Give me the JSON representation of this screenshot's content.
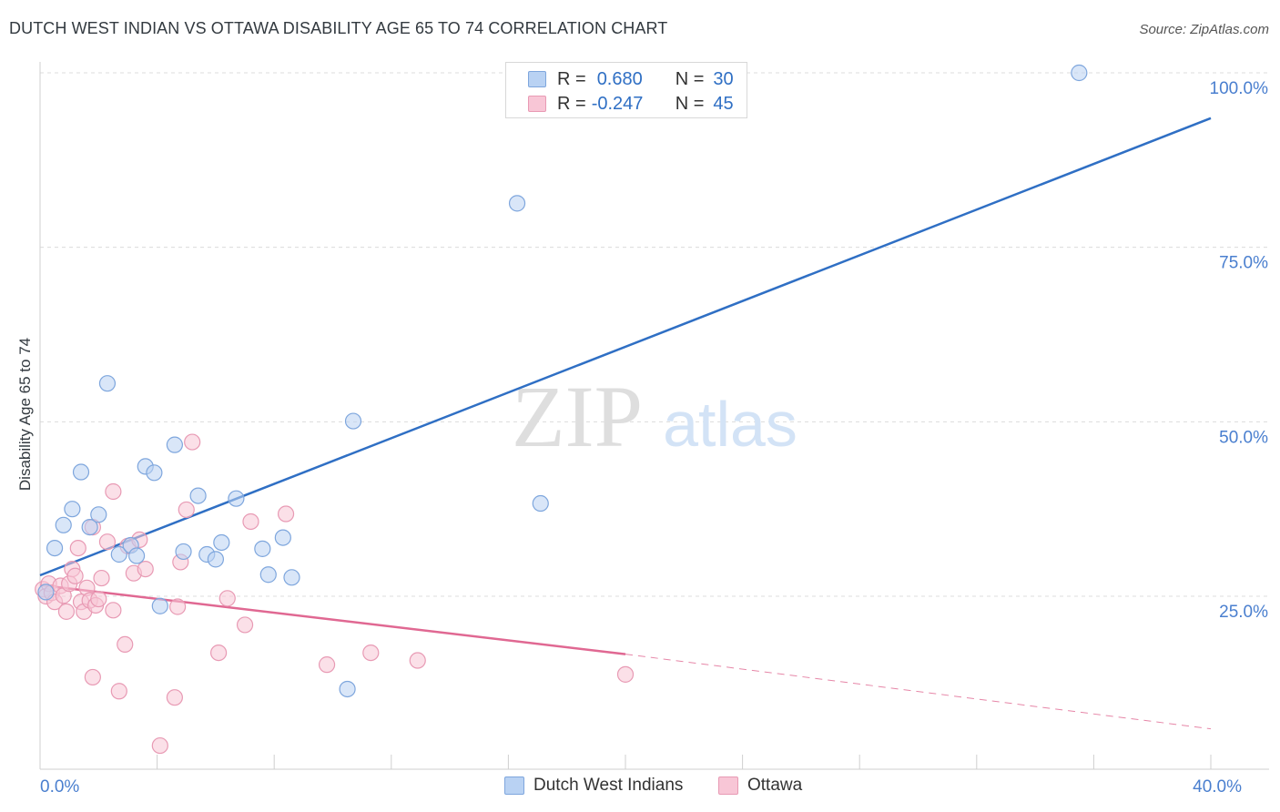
{
  "title": "DUTCH WEST INDIAN VS OTTAWA DISABILITY AGE 65 TO 74 CORRELATION CHART",
  "source": "Source: ZipAtlas.com",
  "watermark": {
    "zip": "ZIP",
    "atlas": "atlas"
  },
  "stats": {
    "blue": {
      "r_label": "R =",
      "r_value": "0.680",
      "n_label": "N =",
      "n_value": "30"
    },
    "pink": {
      "r_label": "R =",
      "r_value": "-0.247",
      "n_label": "N =",
      "n_value": "45"
    }
  },
  "legend": {
    "blue": "Dutch West Indians",
    "pink": "Ottawa"
  },
  "colors": {
    "blue_fill": "#b9d2f3",
    "blue_stroke": "#7ea6dd",
    "blue_line": "#2f6fc4",
    "pink_fill": "#f8c6d6",
    "pink_stroke": "#e89ab4",
    "pink_line": "#e06892",
    "grid": "#dcdcdc",
    "tick_label": "#4a7fcf"
  },
  "chart_data": {
    "type": "scatter",
    "title": "DUTCH WEST INDIAN VS OTTAWA DISABILITY AGE 65 TO 74 CORRELATION CHART",
    "xlabel": "",
    "ylabel": "Disability Age 65 to 74",
    "xlim": [
      0,
      40
    ],
    "ylim": [
      0,
      102
    ],
    "x_tick_labels": [
      {
        "value": 0,
        "label": "0.0%"
      },
      {
        "value": 40,
        "label": "40.0%"
      }
    ],
    "y_tick_labels": [
      {
        "value": 25,
        "label": "25.0%"
      },
      {
        "value": 50,
        "label": "50.0%"
      },
      {
        "value": 75,
        "label": "75.0%"
      },
      {
        "value": 100,
        "label": "100.0%"
      }
    ],
    "grid": true,
    "legend_position": "bottom-center",
    "series": [
      {
        "name": "Dutch West Indians",
        "color": "#7ea6dd",
        "points": [
          [
            0.2,
            25.6
          ],
          [
            0.5,
            31.9
          ],
          [
            0.8,
            35.2
          ],
          [
            1.1,
            37.5
          ],
          [
            1.4,
            42.8
          ],
          [
            1.7,
            34.9
          ],
          [
            2.0,
            36.7
          ],
          [
            2.3,
            55.5
          ],
          [
            2.7,
            31.0
          ],
          [
            3.1,
            32.3
          ],
          [
            3.3,
            30.8
          ],
          [
            3.6,
            43.6
          ],
          [
            3.9,
            42.7
          ],
          [
            4.1,
            23.6
          ],
          [
            4.6,
            46.7
          ],
          [
            4.9,
            31.4
          ],
          [
            5.4,
            39.4
          ],
          [
            5.7,
            31.0
          ],
          [
            6.0,
            30.3
          ],
          [
            6.2,
            32.7
          ],
          [
            6.7,
            39.0
          ],
          [
            7.6,
            31.8
          ],
          [
            7.8,
            28.1
          ],
          [
            8.3,
            33.4
          ],
          [
            8.6,
            27.7
          ],
          [
            10.5,
            11.7
          ],
          [
            10.7,
            50.1
          ],
          [
            16.3,
            81.3
          ],
          [
            17.1,
            38.3
          ],
          [
            35.5,
            100.0
          ]
        ],
        "trend": {
          "x": [
            0,
            40
          ],
          "y": [
            28.0,
            93.5
          ],
          "style": "solid"
        }
      },
      {
        "name": "Ottawa",
        "color": "#e89ab4",
        "points": [
          [
            0.1,
            26.0
          ],
          [
            0.2,
            25.0
          ],
          [
            0.3,
            26.8
          ],
          [
            0.4,
            25.5
          ],
          [
            0.5,
            24.2
          ],
          [
            0.7,
            26.5
          ],
          [
            0.8,
            25.1
          ],
          [
            0.9,
            22.8
          ],
          [
            1.0,
            26.8
          ],
          [
            1.1,
            28.9
          ],
          [
            1.2,
            27.9
          ],
          [
            1.3,
            31.9
          ],
          [
            1.4,
            24.2
          ],
          [
            1.5,
            22.8
          ],
          [
            1.6,
            26.2
          ],
          [
            1.7,
            24.4
          ],
          [
            1.8,
            34.9
          ],
          [
            1.8,
            13.4
          ],
          [
            1.9,
            23.7
          ],
          [
            2.0,
            24.6
          ],
          [
            2.1,
            27.6
          ],
          [
            2.3,
            32.8
          ],
          [
            2.5,
            23.0
          ],
          [
            2.5,
            40.0
          ],
          [
            2.7,
            11.4
          ],
          [
            2.9,
            18.1
          ],
          [
            3.0,
            32.2
          ],
          [
            3.2,
            28.3
          ],
          [
            3.4,
            33.1
          ],
          [
            3.6,
            28.9
          ],
          [
            4.1,
            3.6
          ],
          [
            4.6,
            10.5
          ],
          [
            4.7,
            23.5
          ],
          [
            4.8,
            29.9
          ],
          [
            5.0,
            37.4
          ],
          [
            5.2,
            47.1
          ],
          [
            6.1,
            16.9
          ],
          [
            6.4,
            24.7
          ],
          [
            7.0,
            20.9
          ],
          [
            7.2,
            35.7
          ],
          [
            8.4,
            36.8
          ],
          [
            9.8,
            15.2
          ],
          [
            11.3,
            16.9
          ],
          [
            12.9,
            15.8
          ],
          [
            20.0,
            13.8
          ]
        ],
        "trend": {
          "x": [
            0,
            20
          ],
          "y": [
            26.6,
            16.7
          ],
          "style": "solid"
        },
        "trend_extension": {
          "x": [
            20,
            40
          ],
          "y": [
            16.7,
            6.0
          ],
          "style": "dashed"
        }
      }
    ]
  }
}
